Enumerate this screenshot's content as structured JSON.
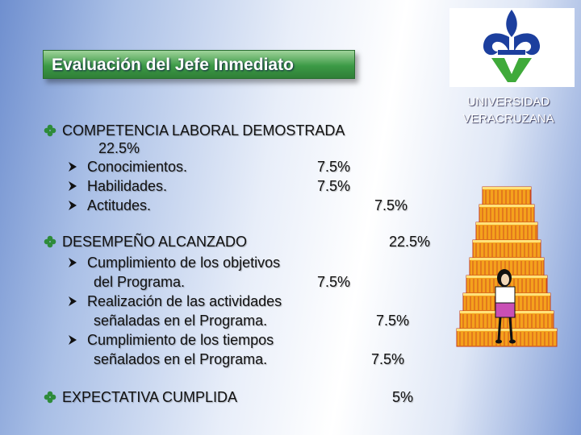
{
  "header": {
    "title": "Evaluación del Jefe Inmediato"
  },
  "logo": {
    "lines": [
      "UNIVERSIDAD",
      "VERACRUZANA"
    ]
  },
  "sections": [
    {
      "label": "COMPETENCIA LABORAL DEMOSTRADA",
      "value": "22.5%",
      "items": [
        {
          "lines": [
            "Conocimientos."
          ],
          "value": "7.5%"
        },
        {
          "lines": [
            "Habilidades."
          ],
          "value": "7.5%"
        },
        {
          "lines": [
            "Actitudes."
          ],
          "value": "7.5%"
        }
      ]
    },
    {
      "label": "DESEMPEÑO ALCANZADO",
      "value": "22.5%",
      "items": [
        {
          "lines": [
            "Cumplimiento de los objetivos",
            "del Programa."
          ],
          "value": "7.5%"
        },
        {
          "lines": [
            "Realización de las actividades",
            "señaladas en el Programa."
          ],
          "value": "7.5%"
        },
        {
          "lines": [
            "Cumplimiento de los tiempos",
            "señalados en el Programa."
          ],
          "value": "7.5%"
        }
      ]
    },
    {
      "label": "EXPECTATIVA CUMPLIDA",
      "value": "5%",
      "items": []
    }
  ]
}
